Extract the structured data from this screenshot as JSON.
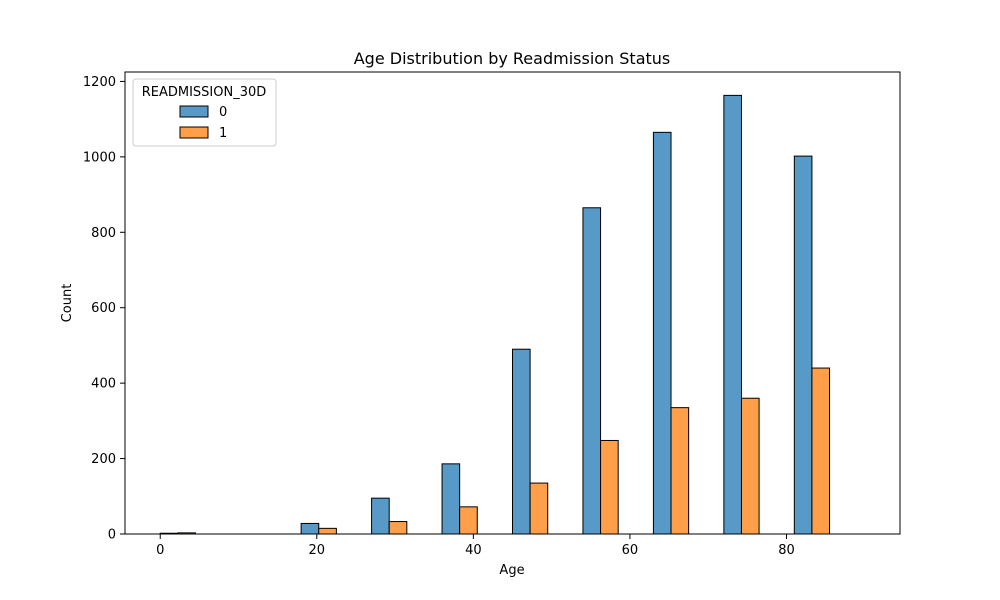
{
  "chart_data": {
    "type": "bar",
    "title": "Age Distribution by Readmission Status",
    "xlabel": "Age",
    "ylabel": "Count",
    "xlim": [
      -4.5,
      94.5
    ],
    "ylim": [
      0,
      1225
    ],
    "xticks": [
      0,
      20,
      40,
      60,
      80
    ],
    "yticks": [
      0,
      200,
      400,
      600,
      800,
      1000,
      1200
    ],
    "bin_edges": [
      0,
      4.5,
      9,
      13.5,
      18,
      22.5,
      27,
      31.5,
      36,
      40.5,
      45,
      49.5,
      54,
      58.5,
      63,
      67.5,
      72,
      76.5,
      81,
      85.5,
      90
    ],
    "legend": {
      "title": "READMISSION_30D",
      "placement": "upper-left"
    },
    "series": [
      {
        "name": "0",
        "color": "#5799c7",
        "values": [
          2,
          0,
          0,
          0,
          0,
          0,
          0,
          0,
          28,
          0,
          0,
          0,
          95,
          0,
          0,
          0,
          186,
          0,
          0,
          0,
          490,
          0,
          0,
          0,
          865,
          0,
          0,
          0,
          1065,
          0,
          0,
          0,
          1163,
          0,
          0,
          0,
          1002,
          0,
          0,
          0
        ]
      },
      {
        "name": "1",
        "color": "#ff9f4a",
        "values": [
          0,
          3,
          0,
          0,
          0,
          0,
          0,
          0,
          0,
          15,
          0,
          0,
          0,
          33,
          0,
          0,
          0,
          72,
          0,
          0,
          0,
          135,
          0,
          0,
          0,
          248,
          0,
          0,
          0,
          335,
          0,
          0,
          0,
          360,
          0,
          0,
          0,
          440,
          0,
          0
        ]
      }
    ]
  }
}
